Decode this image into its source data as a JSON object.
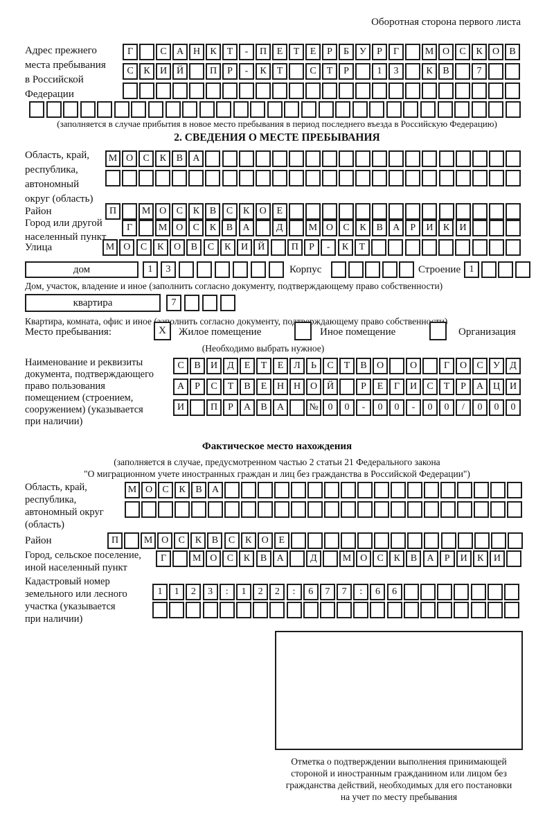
{
  "page": {
    "title": "Оборотная сторона первого листа"
  },
  "section1": {
    "label_lines": [
      "Адрес прежнего",
      "места пребывания",
      "в Российской",
      "Федерации"
    ],
    "rows": [
      [
        "Г",
        "",
        "С",
        "А",
        "Н",
        "К",
        "Т",
        "-",
        "П",
        "Е",
        "Т",
        "Е",
        "Р",
        "Б",
        "У",
        "Р",
        "Г",
        "",
        "М",
        "О",
        "С",
        "К",
        "О",
        "В"
      ],
      [
        "С",
        "К",
        "И",
        "Й",
        "",
        "П",
        "Р",
        "-",
        "К",
        "Т",
        "",
        "С",
        "Т",
        "Р",
        "",
        "1",
        "3",
        "",
        "К",
        "В",
        "",
        "7",
        "",
        ""
      ],
      [
        "",
        "",
        "",
        "",
        "",
        "",
        "",
        "",
        "",
        "",
        "",
        "",
        "",
        "",
        "",
        "",
        "",
        "",
        "",
        "",
        "",
        "",
        "",
        ""
      ],
      [
        "",
        "",
        "",
        "",
        "",
        "",
        "",
        "",
        "",
        "",
        "",
        "",
        "",
        "",
        "",
        "",
        "",
        "",
        "",
        "",
        "",
        "",
        "",
        "",
        "",
        "",
        "",
        "",
        ""
      ]
    ],
    "caption": "(заполняется в случае прибытия в новое место пребывания в период последнего въезда в Российскую Федерацию)"
  },
  "section2": {
    "header": "2. СВЕДЕНИЯ О МЕСТЕ ПРЕБЫВАНИЯ",
    "region_label_lines": [
      "Область, край,",
      "республика,",
      "автономный",
      "округ (область)"
    ],
    "region_rows": [
      [
        "М",
        "О",
        "С",
        "К",
        "В",
        "А",
        "",
        "",
        "",
        "",
        "",
        "",
        "",
        "",
        "",
        "",
        "",
        "",
        "",
        "",
        "",
        "",
        "",
        "",
        ""
      ],
      [
        "",
        "",
        "",
        "",
        "",
        "",
        "",
        "",
        "",
        "",
        "",
        "",
        "",
        "",
        "",
        "",
        "",
        "",
        "",
        "",
        "",
        "",
        "",
        "",
        ""
      ]
    ],
    "district_label": "Район",
    "district_row": [
      "П",
      "",
      "М",
      "О",
      "С",
      "К",
      "В",
      "С",
      "К",
      "О",
      "Е",
      "",
      "",
      "",
      "",
      "",
      "",
      "",
      "",
      "",
      "",
      "",
      "",
      "",
      ""
    ],
    "city_label_lines": [
      "Город или другой",
      "населенный пункт"
    ],
    "city_row": [
      "Г",
      "",
      "М",
      "О",
      "С",
      "К",
      "В",
      "А",
      "",
      "Д",
      "",
      "М",
      "О",
      "С",
      "К",
      "В",
      "А",
      "Р",
      "И",
      "К",
      "И",
      "",
      "",
      ""
    ],
    "street_label": "Улица",
    "street_row": [
      "М",
      "О",
      "С",
      "К",
      "О",
      "В",
      "С",
      "К",
      "И",
      "Й",
      "",
      "П",
      "Р",
      "-",
      "К",
      "Т",
      "",
      "",
      "",
      "",
      "",
      "",
      "",
      "",
      ""
    ],
    "house_box_label": "дом",
    "house_row": [
      "1",
      "3",
      "",
      "",
      "",
      "",
      "",
      ""
    ],
    "korpus_label": "Корпус",
    "korpus_row": [
      "",
      "",
      "",
      "",
      ""
    ],
    "stroenie_label": "Строение",
    "stroenie_row": [
      "1",
      "",
      "",
      ""
    ],
    "house_caption": "Дом, участок, владение и иное (заполнить согласно документу, подтверждающему право собственности)",
    "apartment_box_label": "квартира",
    "apartment_row": [
      "7",
      "",
      "",
      ""
    ],
    "apartment_caption": "Квартира, комната, офис и иное (заполнить согласно документу, подтверждающему право собственности)",
    "stay_label": "Место пребывания:",
    "stay_options": [
      {
        "label": "Жилое помещение",
        "mark": "X"
      },
      {
        "label": "Иное помещение",
        "mark": ""
      },
      {
        "label": "Организация",
        "mark": ""
      }
    ],
    "stay_note": "(Необходимо выбрать нужное)",
    "doc_label_lines": [
      "Наименование и реквизиты",
      "документа, подтверждающего",
      "право пользования",
      "помещением (строением,",
      "сооружением) (указывается",
      "при наличии)"
    ],
    "doc_rows": [
      [
        "С",
        "В",
        "И",
        "Д",
        "Е",
        "Т",
        "Е",
        "Л",
        "Ь",
        "С",
        "Т",
        "В",
        "О",
        "",
        "О",
        "",
        "Г",
        "О",
        "С",
        "У",
        "Д"
      ],
      [
        "А",
        "Р",
        "С",
        "Т",
        "В",
        "Е",
        "Н",
        "Н",
        "О",
        "Й",
        "",
        "Р",
        "Е",
        "Г",
        "И",
        "С",
        "Т",
        "Р",
        "А",
        "Ц",
        "И"
      ],
      [
        "И",
        "",
        "П",
        "Р",
        "А",
        "В",
        "А",
        "",
        "№",
        "0",
        "0",
        "-",
        "0",
        "0",
        "-",
        "0",
        "0",
        "/",
        "0",
        "0",
        "0"
      ]
    ]
  },
  "actual": {
    "header": "Фактическое место нахождения",
    "caption_lines": [
      "(заполняется в случае, предусмотренном частью 2 статьи 21 Федерального закона",
      "\"О миграционном учете иностранных граждан и лиц без гражданства в Российской Федерации\")"
    ],
    "region_label_lines": [
      "Область, край,",
      "республика,",
      "автономный округ",
      "(область)"
    ],
    "region_rows": [
      [
        "М",
        "О",
        "С",
        "К",
        "В",
        "А",
        "",
        "",
        "",
        "",
        "",
        "",
        "",
        "",
        "",
        "",
        "",
        "",
        "",
        "",
        "",
        "",
        "",
        ""
      ],
      [
        "",
        "",
        "",
        "",
        "",
        "",
        "",
        "",
        "",
        "",
        "",
        "",
        "",
        "",
        "",
        "",
        "",
        "",
        "",
        "",
        "",
        "",
        "",
        ""
      ]
    ],
    "district_label": "Район",
    "district_row": [
      "П",
      "",
      "М",
      "О",
      "С",
      "К",
      "В",
      "С",
      "К",
      "О",
      "Е",
      "",
      "",
      "",
      "",
      "",
      "",
      "",
      "",
      "",
      "",
      "",
      "",
      "",
      ""
    ],
    "city_label_lines": [
      "Город, сельское поселение,",
      "иной населенный пункт"
    ],
    "city_row": [
      "Г",
      "",
      "М",
      "О",
      "С",
      "К",
      "В",
      "А",
      "",
      "Д",
      "",
      "М",
      "О",
      "С",
      "К",
      "В",
      "А",
      "Р",
      "И",
      "К",
      "И",
      ""
    ],
    "cadastre_label_lines": [
      "Кадастровый номер",
      "земельного или лесного",
      "участка (указывается",
      "при наличии)"
    ],
    "cadastre_rows": [
      [
        "1",
        "1",
        "2",
        "3",
        ":",
        "1",
        "2",
        "2",
        ":",
        "6",
        "7",
        "7",
        ":",
        "6",
        "6",
        "",
        "",
        "",
        "",
        "",
        "",
        ""
      ],
      [
        "",
        "",
        "",
        "",
        "",
        "",
        "",
        "",
        "",
        "",
        "",
        "",
        "",
        "",
        "",
        "",
        "",
        "",
        "",
        "",
        "",
        ""
      ]
    ],
    "mark_caption_lines": [
      "Отметка о подтверждении выполнения принимающей",
      "стороной и иностранным гражданином или лицом без",
      "гражданства действий, необходимых для его постановки",
      "на учет по месту пребывания"
    ]
  }
}
